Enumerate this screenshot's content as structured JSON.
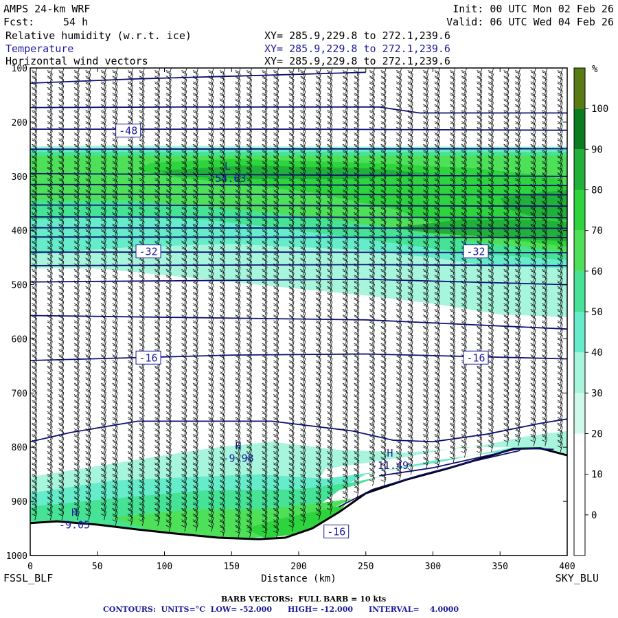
{
  "header": {
    "model": "AMPS 24-km WRF",
    "fcst_label": "Fcst:",
    "fcst_value": "54 h",
    "init": "Init: 00 UTC Mon 02 Feb 26",
    "valid": "Valid: 06 UTC Wed 04 Feb 26",
    "fields": [
      {
        "name": "Relative humidity (w.r.t. ice)",
        "xy": "XY= 285.9,229.8 to 272.1,239.6"
      },
      {
        "name": "Temperature",
        "xy": "XY= 285.9,229.8 to 272.1,239.6"
      },
      {
        "name": "Horizontal wind vectors",
        "xy": "XY= 285.9,229.8 to 272.1,239.6"
      }
    ]
  },
  "chart_data": {
    "type": "heatmap",
    "xlabel": "Distance (km)",
    "ylabel": "",
    "xlim": [
      0,
      400
    ],
    "ylim": [
      1000,
      100
    ],
    "x_ticks": [
      0,
      50,
      100,
      150,
      200,
      250,
      300,
      350,
      400
    ],
    "y_ticks": [
      100,
      200,
      300,
      400,
      500,
      600,
      700,
      800,
      900,
      1000
    ],
    "left_endpoint": "FSSL_BLF",
    "right_endpoint": "SKY_BLU",
    "colorbar": {
      "unit": "%",
      "ticks": [
        0,
        10,
        20,
        30,
        40,
        50,
        60,
        70,
        80,
        90,
        100
      ],
      "colors": [
        "#ffffff",
        "#ffffff",
        "#ffffff",
        "#cffaeb",
        "#a8f5dd",
        "#66ecca",
        "#46e296",
        "#4fe05a",
        "#2ed43d",
        "#21b03a",
        "#0c7c20",
        "#5a7a14"
      ]
    },
    "rh_regions": [
      {
        "level": 40,
        "points": [
          [
            0,
            245
          ],
          [
            60,
            243
          ],
          [
            200,
            245
          ],
          [
            400,
            245
          ],
          [
            400,
            560
          ],
          [
            350,
            555
          ],
          [
            300,
            535
          ],
          [
            250,
            520
          ],
          [
            170,
            500
          ],
          [
            110,
            485
          ],
          [
            50,
            470
          ],
          [
            0,
            470
          ]
        ]
      },
      {
        "level": 50,
        "points": [
          [
            0,
            248
          ],
          [
            400,
            248
          ],
          [
            400,
            470
          ],
          [
            340,
            465
          ],
          [
            300,
            450
          ],
          [
            240,
            435
          ],
          [
            150,
            425
          ],
          [
            80,
            430
          ],
          [
            20,
            440
          ],
          [
            0,
            445
          ]
        ]
      },
      {
        "level": 60,
        "points": [
          [
            0,
            255
          ],
          [
            400,
            255
          ],
          [
            400,
            455
          ],
          [
            320,
            440
          ],
          [
            260,
            420
          ],
          [
            200,
            400
          ],
          [
            130,
            380
          ],
          [
            60,
            375
          ],
          [
            0,
            380
          ]
        ]
      },
      {
        "level": 70,
        "points": [
          [
            0,
            262
          ],
          [
            400,
            262
          ],
          [
            400,
            440
          ],
          [
            330,
            420
          ],
          [
            270,
            395
          ],
          [
            210,
            375
          ],
          [
            150,
            360
          ],
          [
            80,
            345
          ],
          [
            0,
            345
          ]
        ]
      },
      {
        "level": 80,
        "points": [
          [
            90,
            275
          ],
          [
            150,
            268
          ],
          [
            250,
            275
          ],
          [
            330,
            285
          ],
          [
            390,
            300
          ],
          [
            400,
            320
          ],
          [
            400,
            430
          ],
          [
            350,
            415
          ],
          [
            300,
            385
          ],
          [
            270,
            360
          ],
          [
            210,
            330
          ],
          [
            150,
            312
          ],
          [
            100,
            300
          ],
          [
            80,
            288
          ]
        ]
      },
      {
        "level": 90,
        "points": [
          [
            95,
            290
          ],
          [
            160,
            280
          ],
          [
            250,
            285
          ],
          [
            300,
            295
          ],
          [
            240,
            305
          ],
          [
            160,
            305
          ],
          [
            110,
            300
          ]
        ]
      },
      {
        "level": 90,
        "points": [
          [
            350,
            340
          ],
          [
            380,
            330
          ],
          [
            400,
            325
          ],
          [
            400,
            380
          ],
          [
            375,
            375
          ],
          [
            355,
            360
          ]
        ]
      },
      {
        "level": 90,
        "points": [
          [
            270,
            395
          ],
          [
            320,
            380
          ],
          [
            380,
            380
          ],
          [
            400,
            385
          ],
          [
            400,
            420
          ],
          [
            360,
            415
          ],
          [
            300,
            405
          ]
        ]
      },
      {
        "level": 40,
        "points": [
          [
            0,
            855
          ],
          [
            50,
            835
          ],
          [
            100,
            815
          ],
          [
            140,
            800
          ],
          [
            180,
            790
          ],
          [
            230,
            805
          ],
          [
            280,
            810
          ],
          [
            330,
            800
          ],
          [
            370,
            780
          ],
          [
            400,
            770
          ],
          [
            400,
            812
          ],
          [
            360,
            800
          ],
          [
            320,
            800
          ],
          [
            280,
            818
          ],
          [
            220,
            840
          ],
          [
            190,
            963
          ],
          [
            150,
            975
          ],
          [
            80,
            958
          ],
          [
            0,
            938
          ]
        ]
      },
      {
        "level": 50,
        "points": [
          [
            0,
            885
          ],
          [
            60,
            862
          ],
          [
            120,
            855
          ],
          [
            170,
            850
          ],
          [
            220,
            858
          ],
          [
            260,
            845
          ],
          [
            300,
            830
          ],
          [
            330,
            815
          ],
          [
            360,
            800
          ],
          [
            380,
            800
          ],
          [
            340,
            812
          ],
          [
            300,
            825
          ],
          [
            250,
            850
          ],
          [
            200,
            915
          ],
          [
            160,
            968
          ],
          [
            80,
            955
          ],
          [
            0,
            940
          ]
        ]
      },
      {
        "level": 60,
        "points": [
          [
            0,
            910
          ],
          [
            60,
            895
          ],
          [
            130,
            880
          ],
          [
            200,
            878
          ],
          [
            240,
            865
          ],
          [
            260,
            855
          ],
          [
            230,
            880
          ],
          [
            200,
            935
          ],
          [
            160,
            970
          ],
          [
            80,
            956
          ],
          [
            0,
            940
          ]
        ]
      },
      {
        "level": 70,
        "points": [
          [
            60,
            930
          ],
          [
            120,
            915
          ],
          [
            170,
            915
          ],
          [
            210,
            905
          ],
          [
            240,
            895
          ],
          [
            215,
            925
          ],
          [
            190,
            960
          ],
          [
            150,
            972
          ],
          [
            100,
            962
          ]
        ]
      },
      {
        "level": 80,
        "points": [
          [
            160,
            950
          ],
          [
            190,
            930
          ],
          [
            220,
            915
          ],
          [
            235,
            905
          ],
          [
            225,
            935
          ],
          [
            200,
            960
          ],
          [
            175,
            968
          ]
        ]
      }
    ],
    "terrain": [
      [
        0,
        940
      ],
      [
        20,
        937
      ],
      [
        50,
        943
      ],
      [
        80,
        952
      ],
      [
        110,
        960
      ],
      [
        140,
        967
      ],
      [
        170,
        970
      ],
      [
        190,
        967
      ],
      [
        210,
        950
      ],
      [
        230,
        920
      ],
      [
        250,
        885
      ],
      [
        280,
        860
      ],
      [
        310,
        840
      ],
      [
        340,
        818
      ],
      [
        360,
        803
      ],
      [
        380,
        802
      ],
      [
        400,
        815
      ]
    ],
    "temperature_contours_c": [
      -52,
      -48,
      -44,
      -40,
      -36,
      -32,
      -28,
      -24,
      -20,
      -16,
      -12
    ],
    "isotherms": [
      {
        "points": [
          [
            0,
            128
          ],
          [
            80,
            120
          ],
          [
            180,
            113
          ],
          [
            250,
            108
          ]
        ]
      },
      {
        "points": [
          [
            0,
            173
          ],
          [
            120,
            172
          ],
          [
            260,
            172
          ],
          [
            290,
            183
          ],
          [
            400,
            183
          ]
        ]
      },
      {
        "points": [
          [
            0,
            213
          ],
          [
            200,
            213
          ],
          [
            400,
            215
          ]
        ]
      },
      {
        "points": [
          [
            0,
            250
          ],
          [
            400,
            249
          ]
        ]
      },
      {
        "points": [
          [
            0,
            295
          ],
          [
            400,
            300
          ]
        ]
      },
      {
        "points": [
          [
            0,
            315
          ],
          [
            400,
            317
          ]
        ]
      },
      {
        "points": [
          [
            0,
            333
          ],
          [
            400,
            334
          ]
        ]
      },
      {
        "points": [
          [
            0,
            353
          ],
          [
            400,
            355
          ]
        ]
      },
      {
        "points": [
          [
            0,
            375
          ],
          [
            400,
            376
          ]
        ]
      },
      {
        "points": [
          [
            0,
            395
          ],
          [
            400,
            396
          ]
        ]
      },
      {
        "points": [
          [
            0,
            412
          ],
          [
            400,
            413
          ]
        ]
      },
      {
        "points": [
          [
            0,
            440
          ],
          [
            200,
            440
          ],
          [
            400,
            441
          ]
        ]
      },
      {
        "points": [
          [
            0,
            465
          ],
          [
            250,
            463
          ],
          [
            400,
            465
          ]
        ]
      },
      {
        "points": [
          [
            0,
            495
          ],
          [
            250,
            490
          ],
          [
            400,
            500
          ]
        ]
      },
      {
        "points": [
          [
            0,
            557
          ],
          [
            250,
            565
          ],
          [
            400,
            582
          ]
        ]
      },
      {
        "points": [
          [
            0,
            640
          ],
          [
            150,
            630
          ],
          [
            250,
            628
          ],
          [
            400,
            637
          ]
        ]
      },
      {
        "points": [
          [
            0,
            790
          ],
          [
            30,
            773
          ],
          [
            80,
            752
          ],
          [
            180,
            752
          ],
          [
            240,
            770
          ],
          [
            270,
            787
          ],
          [
            300,
            790
          ],
          [
            340,
            776
          ],
          [
            380,
            756
          ],
          [
            400,
            748
          ]
        ]
      },
      {
        "points": [
          [
            260,
            853
          ],
          [
            300,
            838
          ],
          [
            340,
            816
          ],
          [
            365,
            802
          ],
          [
            390,
            804
          ]
        ]
      },
      {
        "points": [
          [
            230,
            910
          ],
          [
            255,
            878
          ],
          [
            290,
            852
          ],
          [
            330,
            826
          ],
          [
            365,
            806
          ]
        ]
      }
    ],
    "temperature_labels": [
      {
        "text": "-48",
        "x": 73,
        "p": 215
      },
      {
        "text": "-32",
        "x": 88,
        "p": 438
      },
      {
        "text": "-32",
        "x": 332,
        "p": 438
      },
      {
        "text": "-16",
        "x": 88,
        "p": 634
      },
      {
        "text": "-16",
        "x": 332,
        "p": 634
      },
      {
        "text": "-16",
        "x": 228,
        "p": 955
      }
    ],
    "extrema": [
      {
        "kind": "L",
        "value": "-54.63",
        "x": 147,
        "p": 295
      },
      {
        "kind": "H",
        "value": "-9.98",
        "x": 155,
        "p": 812
      },
      {
        "kind": "H",
        "value": "-11.49",
        "x": 268,
        "p": 825
      },
      {
        "kind": "H",
        "value": "-9.05",
        "x": 33,
        "p": 935
      }
    ],
    "barb_columns_km": [
      5,
      15,
      25,
      35,
      45,
      55,
      65,
      75,
      85,
      95,
      105,
      115,
      125,
      135,
      145,
      155,
      165,
      175,
      185,
      195,
      205,
      215,
      225,
      235,
      245,
      255,
      265,
      275,
      285,
      295,
      305,
      315,
      325,
      335,
      345,
      355,
      365,
      375,
      385,
      395
    ]
  },
  "footer": {
    "barb_note": "BARB VECTORS:  FULL BARB = 10 kts",
    "contours": "CONTOURS:  UNITS=°C  LOW= -52.000      HIGH= -12.000      INTERVAL=    4.0000"
  }
}
